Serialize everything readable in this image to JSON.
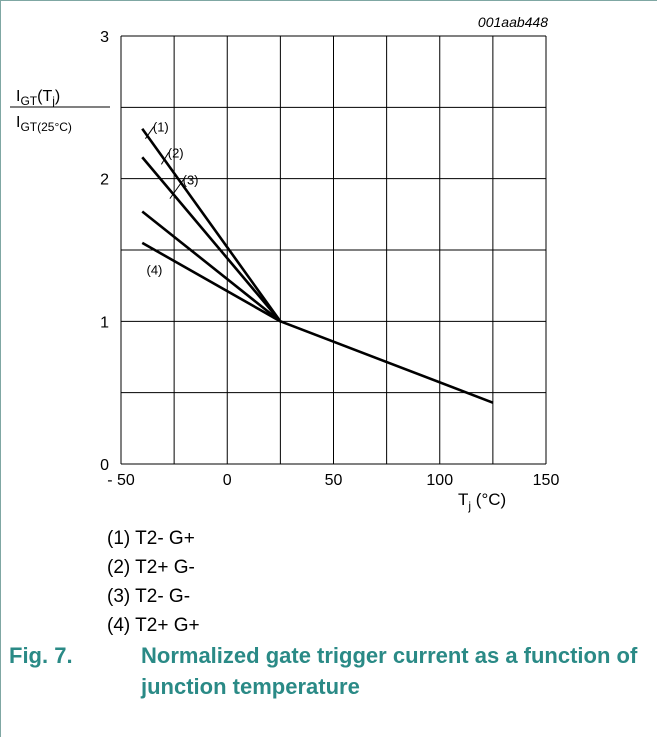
{
  "figure_id": "001aab448",
  "y_label": {
    "main": "I",
    "sub1": "GT",
    "paren": "(T",
    "sub2": "j",
    "close": ")",
    "den_main": "I",
    "den_sub": "GT(25°C)"
  },
  "x_label": {
    "main": "T",
    "sub": "j",
    "rest": " (°C)"
  },
  "legend": [
    "(1) T2- G+",
    "(2) T2+ G-",
    "(3) T2- G-",
    "(4) T2+ G+"
  ],
  "caption": {
    "number": "Fig. 7.",
    "text": "Normalized gate trigger current as a function of junction temperature"
  },
  "chart_data": {
    "type": "line",
    "xlim": [
      -50,
      150
    ],
    "ylim": [
      0,
      3
    ],
    "x_ticks": [
      -50,
      0,
      50,
      100,
      150
    ],
    "x_tick_labels": [
      "- 50",
      "0",
      "50",
      "100",
      "150"
    ],
    "y_ticks": [
      0,
      1,
      2,
      3
    ],
    "y_tick_labels": [
      "0",
      "1",
      "2",
      "3"
    ],
    "grid": true,
    "x_grid_step": 25,
    "y_grid_step": 0.5,
    "series": [
      {
        "name": "(1)",
        "x": [
          -40,
          25
        ],
        "y": [
          2.35,
          1.0
        ]
      },
      {
        "name": "(2)",
        "x": [
          -40,
          25
        ],
        "y": [
          2.15,
          1.0
        ]
      },
      {
        "name": "(3)",
        "x": [
          -40,
          25
        ],
        "y": [
          1.77,
          1.0
        ]
      },
      {
        "name": "(4)",
        "x": [
          -40,
          25
        ],
        "y": [
          1.55,
          1.0
        ]
      },
      {
        "x": [
          25,
          125
        ],
        "y": [
          1.0,
          0.43
        ]
      }
    ],
    "curve_labels": [
      {
        "text": "(1)",
        "x": -35,
        "y": 2.33,
        "lx": -38.5,
        "ly": 2.28
      },
      {
        "text": "(2)",
        "x": -28,
        "y": 2.15,
        "lx": -31,
        "ly": 2.1
      },
      {
        "text": "(3)",
        "x": -21,
        "y": 1.96,
        "lx": -27,
        "ly": 1.86
      },
      {
        "text": "(4)",
        "x": -38,
        "y": 1.33
      }
    ]
  }
}
